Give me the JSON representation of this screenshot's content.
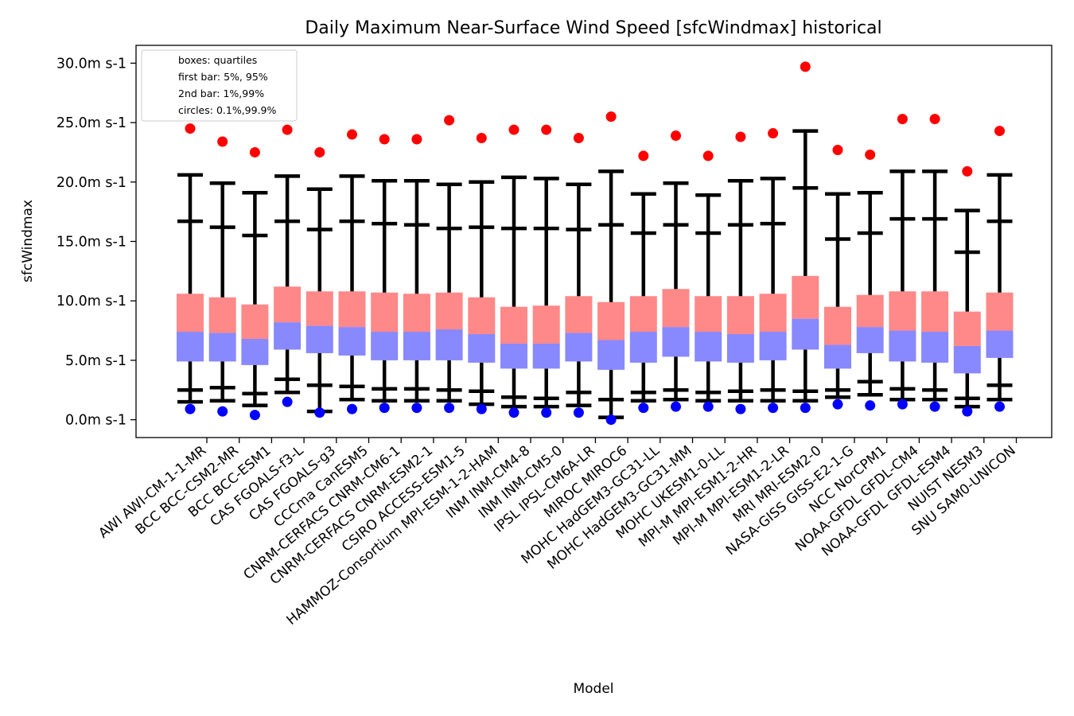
{
  "chart_data": {
    "type": "box",
    "title": "Daily Maximum Near-Surface Wind Speed [sfcWindmax] historical",
    "xlabel": "Model",
    "ylabel": "sfcWindmax",
    "ylim": [
      -1.5,
      31.5
    ],
    "yticks": [
      0,
      5,
      10,
      15,
      20,
      25,
      30
    ],
    "ytick_labels": [
      "0.0m s-1",
      "5.0m s-1",
      "10.0m s-1",
      "15.0m s-1",
      "20.0m s-1",
      "25.0m s-1",
      "30.0m s-1"
    ],
    "legend": {
      "position": "top-left",
      "lines": [
        "boxes: quartiles",
        "first bar: 5%, 95%",
        "2nd bar: 1%,99%",
        "circles: 0.1%,99.9%"
      ]
    },
    "colors": {
      "upper_box": "#ff8888",
      "lower_box": "#8888ff",
      "high_circle": "#ff0000",
      "low_circle": "#0000ff",
      "whisker": "#000000"
    },
    "categories": [
      "AWI AWI-CM-1-1-MR",
      "BCC BCC-CSM2-MR",
      "BCC BCC-ESM1",
      "CAS FGOALS-f3-L",
      "CAS FGOALS-g3",
      "CCCma CanESM5",
      "CNRM-CERFACS CNRM-CM6-1",
      "CNRM-CERFACS CNRM-ESM2-1",
      "CSIRO ACCESS-ESM1-5",
      "HAMMOZ-Consortium MPI-ESM-1-2-HAM",
      "INM INM-CM4-8",
      "INM INM-CM5-0",
      "IPSL IPSL-CM6A-LR",
      "MIROC MIROC6",
      "MOHC HadGEM3-GC31-LL",
      "MOHC HadGEM3-GC31-MM",
      "MOHC UKESM1-0-LL",
      "MPI-M MPI-ESM1-2-HR",
      "MPI-M MPI-ESM1-2-LR",
      "MRI MRI-ESM2-0",
      "NASA-GISS GISS-E2-1-G",
      "NCC NorCPM1",
      "NOAA-GFDL GFDL-CM4",
      "NOAA-GFDL GFDL-ESM4",
      "NUIST NESM3",
      "SNU SAM0-UNICON"
    ],
    "series": [
      {
        "name": "p0.1",
        "values": [
          0.9,
          0.7,
          0.4,
          1.5,
          0.6,
          0.9,
          1.0,
          1.0,
          1.0,
          0.9,
          0.6,
          0.6,
          0.6,
          0.0,
          1.0,
          1.1,
          1.1,
          0.9,
          1.0,
          1.0,
          1.3,
          1.2,
          1.3,
          1.1,
          0.7,
          1.1
        ]
      },
      {
        "name": "p1",
        "values": [
          1.5,
          1.6,
          1.2,
          2.3,
          0.7,
          1.7,
          1.6,
          1.6,
          1.6,
          1.3,
          1.1,
          1.1,
          1.2,
          0.2,
          1.6,
          1.7,
          1.6,
          1.6,
          1.6,
          1.6,
          1.9,
          2.1,
          1.7,
          1.7,
          1.1,
          1.7
        ]
      },
      {
        "name": "p5",
        "values": [
          2.5,
          2.7,
          2.2,
          3.4,
          2.9,
          2.8,
          2.6,
          2.6,
          2.5,
          2.4,
          1.9,
          1.8,
          2.3,
          1.7,
          2.3,
          2.5,
          2.3,
          2.4,
          2.5,
          2.4,
          2.5,
          3.2,
          2.6,
          2.5,
          1.8,
          2.9
        ]
      },
      {
        "name": "q1",
        "values": [
          4.9,
          4.9,
          4.6,
          5.9,
          5.6,
          5.4,
          5.0,
          5.0,
          5.0,
          4.8,
          4.3,
          4.3,
          4.9,
          4.2,
          4.8,
          5.3,
          4.9,
          4.8,
          5.0,
          5.9,
          4.3,
          5.6,
          4.9,
          4.8,
          3.9,
          5.2
        ]
      },
      {
        "name": "median",
        "values": [
          7.4,
          7.3,
          6.8,
          8.2,
          7.9,
          7.8,
          7.4,
          7.4,
          7.6,
          7.2,
          6.4,
          6.4,
          7.3,
          6.7,
          7.4,
          7.8,
          7.4,
          7.2,
          7.4,
          8.5,
          6.3,
          7.8,
          7.5,
          7.4,
          6.2,
          7.5
        ]
      },
      {
        "name": "q3",
        "values": [
          10.6,
          10.3,
          9.7,
          11.2,
          10.8,
          10.8,
          10.7,
          10.6,
          10.7,
          10.3,
          9.5,
          9.6,
          10.4,
          9.9,
          10.4,
          11.0,
          10.4,
          10.4,
          10.6,
          12.1,
          9.5,
          10.5,
          10.8,
          10.8,
          9.1,
          10.7
        ]
      },
      {
        "name": "p95",
        "values": [
          16.7,
          16.2,
          15.5,
          16.7,
          16.0,
          16.7,
          16.5,
          16.4,
          16.1,
          16.2,
          16.1,
          16.1,
          16.0,
          16.4,
          15.7,
          16.4,
          15.7,
          16.4,
          16.5,
          19.5,
          15.2,
          15.7,
          16.9,
          16.9,
          14.1,
          16.7
        ]
      },
      {
        "name": "p99",
        "values": [
          20.6,
          19.9,
          19.1,
          20.5,
          19.4,
          20.5,
          20.1,
          20.1,
          19.8,
          20.0,
          20.4,
          20.3,
          19.8,
          20.9,
          19.0,
          19.9,
          18.9,
          20.1,
          20.3,
          24.3,
          19.0,
          19.1,
          20.9,
          20.9,
          17.6,
          20.6
        ]
      },
      {
        "name": "p99.9",
        "values": [
          24.5,
          23.4,
          22.5,
          24.4,
          22.5,
          24.0,
          23.6,
          23.6,
          25.2,
          23.7,
          24.4,
          24.4,
          23.7,
          25.5,
          22.2,
          23.9,
          22.2,
          23.8,
          24.1,
          29.7,
          22.7,
          22.3,
          25.3,
          25.3,
          20.9,
          24.3
        ]
      }
    ]
  }
}
